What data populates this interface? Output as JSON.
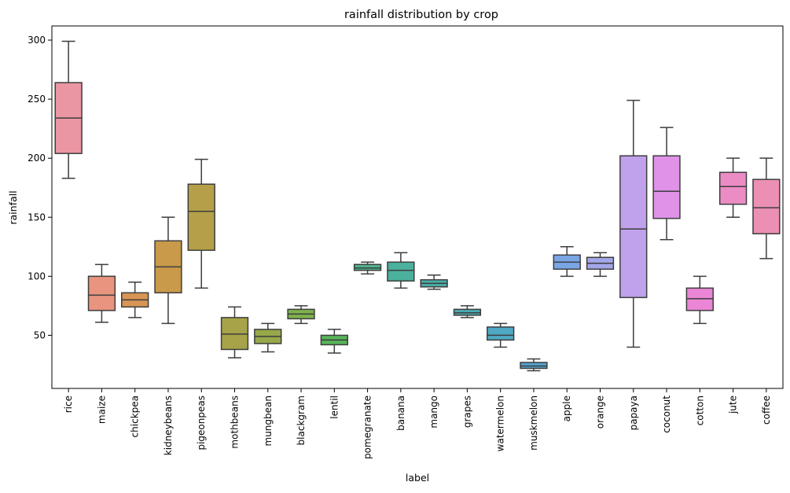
{
  "chart_data": {
    "type": "box",
    "title": "rainfall distribution by crop",
    "xlabel": "label",
    "ylabel": "rainfall",
    "ylim": [
      5,
      312
    ],
    "yticks": [
      50,
      100,
      150,
      200,
      250,
      300
    ],
    "grid": false,
    "legend": "none",
    "categories": [
      "rice",
      "maize",
      "chickpea",
      "kidneybeans",
      "pigeonpeas",
      "mothbeans",
      "mungbean",
      "blackgram",
      "lentil",
      "pomegranate",
      "banana",
      "mango",
      "grapes",
      "watermelon",
      "muskmelon",
      "apple",
      "orange",
      "papaya",
      "coconut",
      "cotton",
      "jute",
      "coffee"
    ],
    "boxes": [
      {
        "min": 183,
        "q1": 204,
        "median": 234,
        "q3": 264,
        "max": 299,
        "color": "#ea96a3"
      },
      {
        "min": 61,
        "q1": 71,
        "median": 84,
        "q3": 100,
        "max": 110,
        "color": "#e8947f"
      },
      {
        "min": 65,
        "q1": 74,
        "median": 80,
        "q3": 86,
        "max": 95,
        "color": "#d99555"
      },
      {
        "min": 60,
        "q1": 86,
        "median": 108,
        "q3": 130,
        "max": 150,
        "color": "#c89a4a"
      },
      {
        "min": 90,
        "q1": 122,
        "median": 155,
        "q3": 178,
        "max": 199,
        "color": "#b5a049"
      },
      {
        "min": 31,
        "q1": 38,
        "median": 51,
        "q3": 65,
        "max": 74,
        "color": "#a6a348"
      },
      {
        "min": 36,
        "q1": 43,
        "median": 49,
        "q3": 55,
        "max": 60,
        "color": "#96a84a"
      },
      {
        "min": 60,
        "q1": 64,
        "median": 68,
        "q3": 72,
        "max": 75,
        "color": "#7fb14c"
      },
      {
        "min": 35,
        "q1": 42,
        "median": 46,
        "q3": 50,
        "max": 55,
        "color": "#58b45a"
      },
      {
        "min": 102,
        "q1": 105,
        "median": 107,
        "q3": 110,
        "max": 112,
        "color": "#50b48f"
      },
      {
        "min": 90,
        "q1": 96,
        "median": 105,
        "q3": 112,
        "max": 120,
        "color": "#4bb09e"
      },
      {
        "min": 89,
        "q1": 91,
        "median": 94,
        "q3": 97,
        "max": 101,
        "color": "#4aaea8"
      },
      {
        "min": 65,
        "q1": 67,
        "median": 69,
        "q3": 72,
        "max": 75,
        "color": "#4aabb4"
      },
      {
        "min": 40,
        "q1": 46,
        "median": 50,
        "q3": 57,
        "max": 60,
        "color": "#4ea9c4"
      },
      {
        "min": 20,
        "q1": 22,
        "median": 24,
        "q3": 27,
        "max": 30,
        "color": "#55a5d2"
      },
      {
        "min": 100,
        "q1": 106,
        "median": 112,
        "q3": 118,
        "max": 125,
        "color": "#7aa6e6"
      },
      {
        "min": 100,
        "q1": 106,
        "median": 111,
        "q3": 116,
        "max": 120,
        "color": "#a3a6e8"
      },
      {
        "min": 40,
        "q1": 82,
        "median": 140,
        "q3": 202,
        "max": 249,
        "color": "#c0a1ec"
      },
      {
        "min": 131,
        "q1": 149,
        "median": 172,
        "q3": 202,
        "max": 226,
        "color": "#df92e8"
      },
      {
        "min": 60,
        "q1": 71,
        "median": 81,
        "q3": 90,
        "max": 100,
        "color": "#ea86d5"
      },
      {
        "min": 150,
        "q1": 161,
        "median": 176,
        "q3": 188,
        "max": 200,
        "color": "#ec8cc4"
      },
      {
        "min": 115,
        "q1": 136,
        "median": 158,
        "q3": 182,
        "max": 200,
        "color": "#eb8fb4"
      }
    ]
  }
}
